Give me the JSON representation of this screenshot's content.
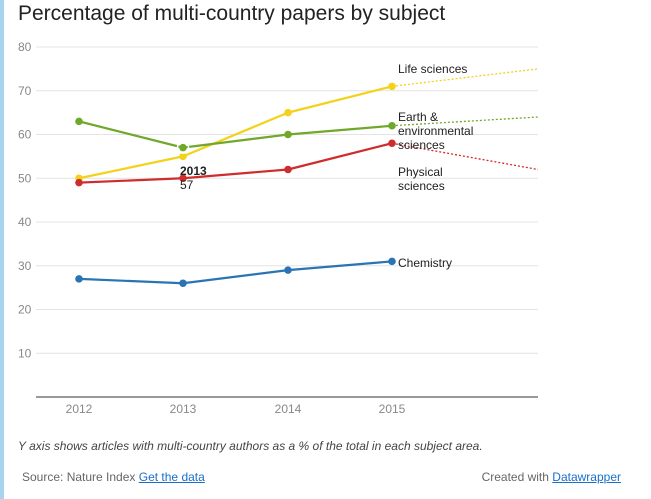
{
  "title": "Percentage of multi-country papers by subject",
  "note": "Y axis shows articles with multi-country authors as a % of the total in each subject area.",
  "footer": {
    "source_label": "Source: Nature Index",
    "source_link": "Get the data",
    "credit_label": "Created with",
    "credit_link": "Datawrapper"
  },
  "tooltip": {
    "year": "2013",
    "value": "57"
  },
  "chart_data": {
    "type": "line",
    "title": "Percentage of multi-country papers by subject",
    "x": [
      2012,
      2013,
      2014,
      2015
    ],
    "x_tick_labels": [
      "2012",
      "2013",
      "2014",
      "2015"
    ],
    "ylim": [
      0,
      80
    ],
    "y_ticks": [
      10,
      20,
      30,
      40,
      50,
      60,
      70,
      80
    ],
    "y_tick_labels": [
      "10",
      "20",
      "30",
      "40",
      "50",
      "60",
      "70",
      "80"
    ],
    "grid": true,
    "series": [
      {
        "name": "Life sciences",
        "color": "#f2d21b",
        "values": [
          50,
          55,
          65,
          71
        ],
        "projection_end": 75
      },
      {
        "name": "Earth & environmental sciences",
        "label_lines": [
          "Earth &",
          "environmental",
          "sciences"
        ],
        "color": "#6fa82a",
        "values": [
          63,
          57,
          60,
          62
        ],
        "projection_end": 64
      },
      {
        "name": "Physical sciences",
        "label_lines": [
          "Physical",
          "sciences"
        ],
        "color": "#cf2d2d",
        "values": [
          49,
          50,
          52,
          58
        ],
        "projection_end": 52
      },
      {
        "name": "Chemistry",
        "color": "#2a74b5",
        "values": [
          27,
          26,
          29,
          31
        ]
      }
    ]
  }
}
